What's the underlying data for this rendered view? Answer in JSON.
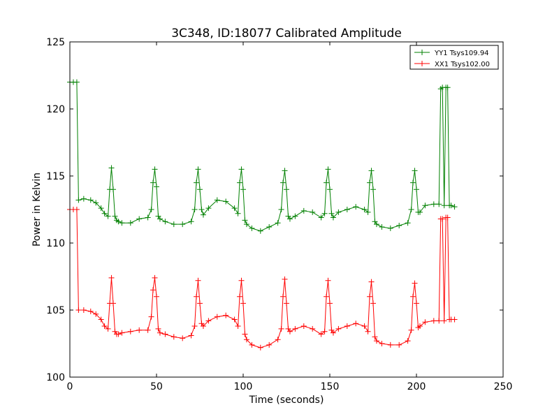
{
  "chart_data": {
    "type": "line",
    "title": "3C348, ID:18077 Calibrated Amplitude",
    "xlabel": "Time (seconds)",
    "ylabel": "Power in Kelvin",
    "xlim": [
      0,
      250
    ],
    "ylim": [
      100,
      125
    ],
    "xticks": [
      "0",
      "50",
      "100",
      "150",
      "200",
      "250"
    ],
    "yticks": [
      "100",
      "105",
      "110",
      "115",
      "120",
      "125"
    ],
    "grid": false,
    "legend_position": "top-right",
    "marker": "plus",
    "series": [
      {
        "name": "YY1 Tsys109.94",
        "color": "#008000",
        "x": [
          0,
          2,
          4,
          5,
          8,
          12,
          15,
          18,
          20,
          22,
          23,
          24,
          25,
          26,
          27,
          28,
          30,
          35,
          40,
          45,
          47,
          48,
          49,
          50,
          51,
          52,
          55,
          60,
          65,
          70,
          72,
          73,
          74,
          75,
          76,
          77,
          80,
          85,
          90,
          95,
          97,
          98,
          99,
          100,
          101,
          102,
          105,
          110,
          115,
          120,
          122,
          123,
          124,
          125,
          126,
          127,
          130,
          135,
          140,
          145,
          147,
          148,
          149,
          150,
          151,
          152,
          155,
          160,
          165,
          170,
          172,
          173,
          174,
          175,
          176,
          177,
          180,
          185,
          190,
          195,
          197,
          198,
          199,
          200,
          201,
          202,
          205,
          210,
          213,
          214,
          215,
          216,
          217,
          218,
          219,
          220,
          222
        ],
        "y": [
          122.0,
          122.0,
          122.0,
          113.2,
          113.3,
          113.2,
          113.0,
          112.6,
          112.2,
          112.0,
          114.0,
          115.6,
          114.0,
          112.0,
          111.7,
          111.6,
          111.5,
          111.5,
          111.8,
          111.9,
          112.5,
          114.5,
          115.5,
          114.2,
          112.0,
          111.8,
          111.6,
          111.4,
          111.4,
          111.6,
          112.5,
          114.5,
          115.5,
          114.0,
          112.5,
          112.1,
          112.6,
          113.2,
          113.1,
          112.6,
          112.2,
          114.5,
          115.5,
          114.0,
          111.7,
          111.4,
          111.1,
          110.9,
          111.2,
          111.5,
          112.5,
          114.5,
          115.4,
          114.0,
          112.0,
          111.8,
          112.0,
          112.4,
          112.3,
          111.9,
          112.2,
          114.5,
          115.5,
          114.0,
          112.2,
          111.9,
          112.3,
          112.5,
          112.7,
          112.5,
          112.3,
          114.5,
          115.4,
          114.0,
          111.6,
          111.4,
          111.2,
          111.1,
          111.3,
          111.5,
          112.5,
          114.5,
          115.4,
          114.0,
          112.3,
          112.3,
          112.8,
          112.9,
          112.9,
          121.5,
          121.6,
          112.8,
          121.6,
          121.6,
          112.8,
          112.8,
          112.7
        ]
      },
      {
        "name": "XX1 Tsys102.00",
        "color": "#ff0000",
        "x": [
          0,
          2,
          4,
          5,
          8,
          12,
          15,
          18,
          20,
          22,
          23,
          24,
          25,
          26,
          27,
          28,
          30,
          35,
          40,
          45,
          47,
          48,
          49,
          50,
          51,
          52,
          55,
          60,
          65,
          70,
          72,
          73,
          74,
          75,
          76,
          77,
          80,
          85,
          90,
          95,
          97,
          98,
          99,
          100,
          101,
          102,
          105,
          110,
          115,
          120,
          122,
          123,
          124,
          125,
          126,
          127,
          130,
          135,
          140,
          145,
          147,
          148,
          149,
          150,
          151,
          152,
          155,
          160,
          165,
          170,
          172,
          173,
          174,
          175,
          176,
          177,
          180,
          185,
          190,
          195,
          197,
          198,
          199,
          200,
          201,
          202,
          205,
          210,
          213,
          214,
          215,
          216,
          217,
          218,
          219,
          220,
          222
        ],
        "y": [
          112.5,
          112.5,
          112.5,
          105.0,
          105.0,
          104.9,
          104.7,
          104.3,
          103.8,
          103.6,
          105.5,
          107.4,
          105.5,
          103.4,
          103.2,
          103.2,
          103.3,
          103.4,
          103.5,
          103.5,
          104.5,
          106.5,
          107.4,
          106.0,
          103.6,
          103.3,
          103.2,
          103.0,
          102.9,
          103.1,
          103.8,
          106.0,
          107.2,
          105.5,
          104.0,
          103.8,
          104.2,
          104.5,
          104.6,
          104.3,
          103.8,
          106.0,
          107.2,
          105.5,
          103.2,
          102.8,
          102.4,
          102.2,
          102.4,
          102.8,
          103.6,
          106.0,
          107.3,
          105.5,
          103.6,
          103.4,
          103.6,
          103.8,
          103.6,
          103.2,
          103.4,
          106.0,
          107.2,
          105.5,
          103.5,
          103.3,
          103.6,
          103.8,
          104.0,
          103.8,
          103.4,
          106.0,
          107.1,
          105.5,
          103.0,
          102.7,
          102.5,
          102.4,
          102.4,
          102.7,
          103.5,
          106.0,
          107.0,
          105.5,
          103.7,
          103.8,
          104.1,
          104.2,
          104.2,
          111.8,
          111.8,
          104.2,
          111.9,
          111.9,
          104.3,
          104.3,
          104.3
        ]
      }
    ]
  }
}
